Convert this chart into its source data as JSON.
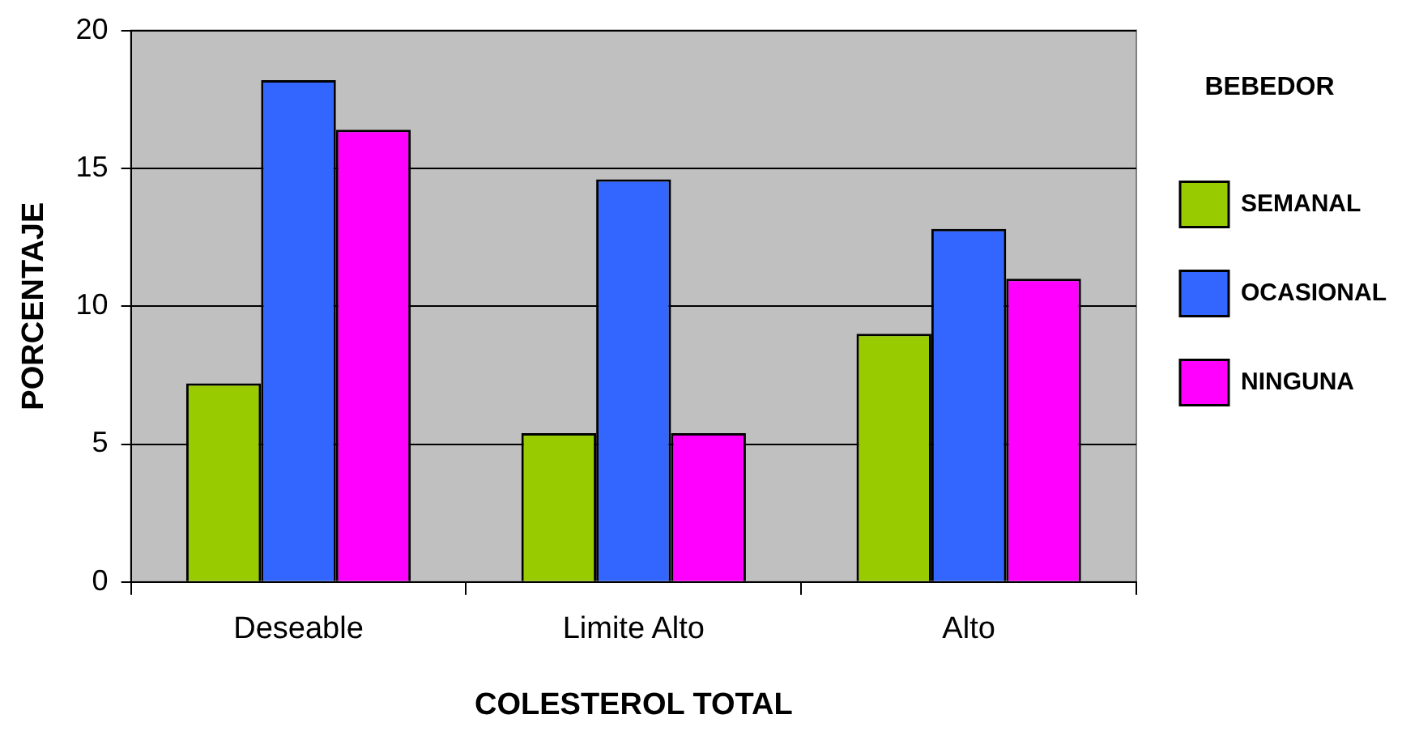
{
  "chart_data": {
    "type": "bar",
    "xlabel": "COLESTEROL TOTAL",
    "ylabel": "PORCENTAJE",
    "legend_title": "BEBEDOR",
    "categories": [
      "Deseable",
      "Limite Alto",
      "Alto"
    ],
    "series": [
      {
        "name": "SEMANAL",
        "color": "#99cc00",
        "values": [
          7.2,
          5.4,
          9.0
        ]
      },
      {
        "name": "OCASIONAL",
        "color": "#3366ff",
        "values": [
          18.2,
          14.6,
          12.8
        ]
      },
      {
        "name": "NINGUNA",
        "color": "#ff00ff",
        "values": [
          16.4,
          5.4,
          11.0
        ]
      }
    ],
    "ylim": [
      0,
      20
    ],
    "yticks": [
      0,
      5,
      10,
      15,
      20
    ],
    "grid": "y",
    "legend": "right"
  }
}
